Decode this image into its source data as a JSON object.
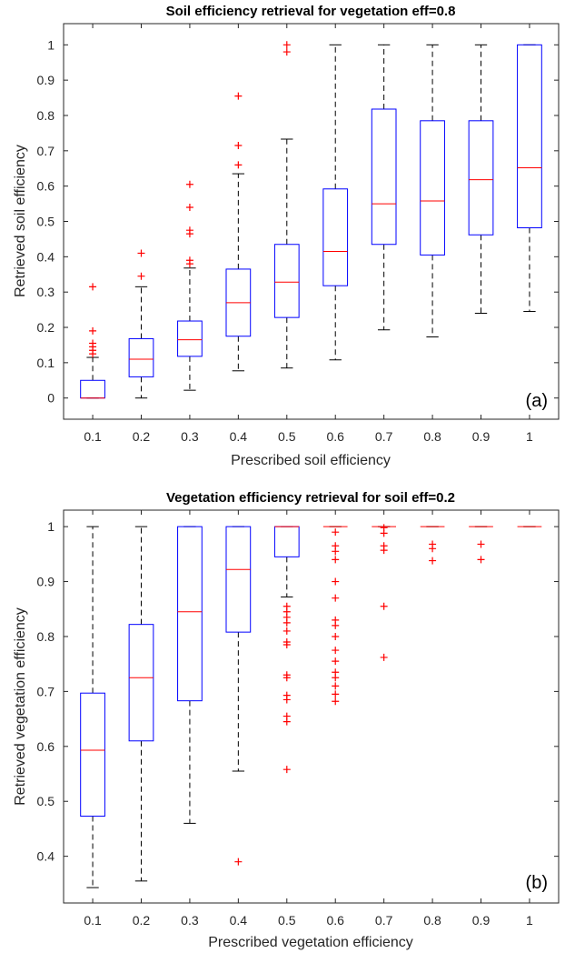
{
  "chart_data": [
    {
      "type": "boxplot",
      "panel_label": "(a)",
      "title": "Soil efficiency retrieval for vegetation eff=0.8",
      "xlabel": "Prescribed soil efficiency",
      "ylabel": "Retrieved soil efficiency",
      "categories": [
        "0.1",
        "0.2",
        "0.3",
        "0.4",
        "0.5",
        "0.6",
        "0.7",
        "0.8",
        "0.9",
        "1"
      ],
      "ylim": [
        -0.06,
        1.06
      ],
      "yticks": [
        0,
        0.1,
        0.2,
        0.3,
        0.4,
        0.5,
        0.6,
        0.7,
        0.8,
        0.9,
        1
      ],
      "ytick_labels": [
        "0",
        "0.1",
        "0.2",
        "0.3",
        "0.4",
        "0.5",
        "0.6",
        "0.7",
        "0.8",
        "0.9",
        "1"
      ],
      "grid": false,
      "colors": {
        "box": "#0000ff",
        "median": "#ff0000",
        "whisker": "#000000",
        "outlier": "#ff0000"
      },
      "boxes": [
        {
          "q1": 0.0,
          "median": 0.0,
          "q3": 0.05,
          "whislo": 0.0,
          "whishi": 0.115,
          "fliers": [
            0.125,
            0.135,
            0.145,
            0.155,
            0.19,
            0.315
          ]
        },
        {
          "q1": 0.06,
          "median": 0.11,
          "q3": 0.168,
          "whislo": 0.0,
          "whishi": 0.315,
          "fliers": [
            0.345,
            0.41
          ]
        },
        {
          "q1": 0.118,
          "median": 0.165,
          "q3": 0.218,
          "whislo": 0.022,
          "whishi": 0.368,
          "fliers": [
            0.38,
            0.39,
            0.465,
            0.475,
            0.54,
            0.605
          ]
        },
        {
          "q1": 0.175,
          "median": 0.27,
          "q3": 0.365,
          "whislo": 0.077,
          "whishi": 0.635,
          "fliers": [
            0.66,
            0.715,
            0.855
          ]
        },
        {
          "q1": 0.228,
          "median": 0.328,
          "q3": 0.435,
          "whislo": 0.085,
          "whishi": 0.733,
          "fliers": [
            0.98,
            1.0
          ]
        },
        {
          "q1": 0.318,
          "median": 0.415,
          "q3": 0.592,
          "whislo": 0.108,
          "whishi": 1.0,
          "fliers": []
        },
        {
          "q1": 0.435,
          "median": 0.55,
          "q3": 0.818,
          "whislo": 0.193,
          "whishi": 1.0,
          "fliers": []
        },
        {
          "q1": 0.405,
          "median": 0.558,
          "q3": 0.785,
          "whislo": 0.173,
          "whishi": 1.0,
          "fliers": []
        },
        {
          "q1": 0.462,
          "median": 0.618,
          "q3": 0.785,
          "whislo": 0.24,
          "whishi": 1.0,
          "fliers": []
        },
        {
          "q1": 0.482,
          "median": 0.652,
          "q3": 1.0,
          "whislo": 0.245,
          "whishi": 1.0,
          "fliers": []
        }
      ]
    },
    {
      "type": "boxplot",
      "panel_label": "(b)",
      "title": "Vegetation efficiency retrieval for soil eff=0.2",
      "xlabel": "Prescribed vegetation efficiency",
      "ylabel": "Retrieved vegetation efficiency",
      "categories": [
        "0.1",
        "0.2",
        "0.3",
        "0.4",
        "0.5",
        "0.6",
        "0.7",
        "0.8",
        "0.9",
        "1"
      ],
      "ylim": [
        0.315,
        1.03
      ],
      "yticks": [
        0.4,
        0.5,
        0.6,
        0.7,
        0.8,
        0.9,
        1
      ],
      "ytick_labels": [
        "0.4",
        "0.5",
        "0.6",
        "0.7",
        "0.8",
        "0.9",
        "1"
      ],
      "grid": false,
      "colors": {
        "box": "#0000ff",
        "median": "#ff0000",
        "whisker": "#000000",
        "outlier": "#ff0000"
      },
      "boxes": [
        {
          "q1": 0.473,
          "median": 0.593,
          "q3": 0.697,
          "whislo": 0.343,
          "whishi": 1.0,
          "fliers": []
        },
        {
          "q1": 0.61,
          "median": 0.725,
          "q3": 0.822,
          "whislo": 0.355,
          "whishi": 1.0,
          "fliers": []
        },
        {
          "q1": 0.683,
          "median": 0.845,
          "q3": 1.0,
          "whislo": 0.46,
          "whishi": 1.0,
          "fliers": []
        },
        {
          "q1": 0.808,
          "median": 0.922,
          "q3": 1.0,
          "whislo": 0.555,
          "whishi": 1.0,
          "fliers": [
            0.39
          ]
        },
        {
          "q1": 0.945,
          "median": 1.0,
          "q3": 1.0,
          "whislo": 0.872,
          "whishi": 1.0,
          "fliers": [
            0.558,
            0.645,
            0.655,
            0.685,
            0.693,
            0.725,
            0.73,
            0.785,
            0.79,
            0.81,
            0.825,
            0.835,
            0.845,
            0.855
          ]
        },
        {
          "q1": 1.0,
          "median": 1.0,
          "q3": 1.0,
          "whislo": 1.0,
          "whishi": 1.0,
          "fliers": [
            0.682,
            0.695,
            0.71,
            0.725,
            0.735,
            0.755,
            0.775,
            0.8,
            0.82,
            0.83,
            0.87,
            0.9,
            0.94,
            0.955,
            0.965,
            0.99
          ]
        },
        {
          "q1": 1.0,
          "median": 1.0,
          "q3": 1.0,
          "whislo": 1.0,
          "whishi": 1.0,
          "fliers": [
            0.762,
            0.855,
            0.957,
            0.965,
            0.988,
            0.998
          ]
        },
        {
          "q1": 1.0,
          "median": 1.0,
          "q3": 1.0,
          "whislo": 1.0,
          "whishi": 1.0,
          "fliers": [
            0.938,
            0.96,
            0.968
          ]
        },
        {
          "q1": 1.0,
          "median": 1.0,
          "q3": 1.0,
          "whislo": 1.0,
          "whishi": 1.0,
          "fliers": [
            0.94,
            0.968
          ]
        },
        {
          "q1": 1.0,
          "median": 1.0,
          "q3": 1.0,
          "whislo": 1.0,
          "whishi": 1.0,
          "fliers": []
        }
      ]
    }
  ]
}
